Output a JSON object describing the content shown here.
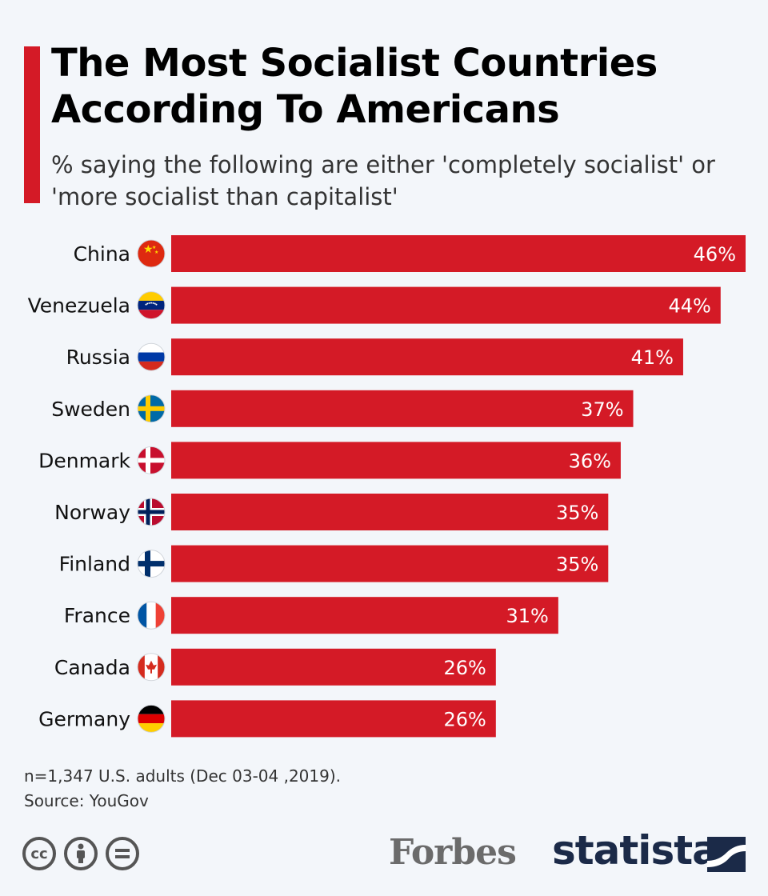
{
  "header": {
    "title": "The Most Socialist Countries According To Americans",
    "subtitle": "% saying the following are either 'completely socialist' or 'more socialist than capitalist'"
  },
  "chart_data": {
    "type": "bar",
    "orientation": "horizontal",
    "title": "The Most Socialist Countries According To Americans",
    "subtitle": "% saying the following are either 'completely socialist' or 'more socialist than capitalist'",
    "categories": [
      "China",
      "Venezuela",
      "Russia",
      "Sweden",
      "Denmark",
      "Norway",
      "Finland",
      "France",
      "Canada",
      "Germany"
    ],
    "values": [
      46,
      44,
      41,
      37,
      36,
      35,
      35,
      31,
      26,
      26
    ],
    "value_labels": [
      "46%",
      "44%",
      "41%",
      "37%",
      "36%",
      "35%",
      "35%",
      "31%",
      "26%",
      "26%"
    ],
    "unit": "%",
    "xlim": [
      0,
      46
    ],
    "grid": false,
    "bar_color": "#d41a26",
    "flag_icons": [
      "china-flag-icon",
      "venezuela-flag-icon",
      "russia-flag-icon",
      "sweden-flag-icon",
      "denmark-flag-icon",
      "norway-flag-icon",
      "finland-flag-icon",
      "france-flag-icon",
      "canada-flag-icon",
      "germany-flag-icon"
    ]
  },
  "notes": {
    "sample": "n=1,347 U.S. adults (Dec 03-04 ,2019).",
    "source": "Source: YouGov"
  },
  "footer": {
    "cc_icons": [
      "cc-icon",
      "by-icon",
      "nd-icon"
    ],
    "cc_text": "cc",
    "forbes": "Forbes",
    "statista": "statista"
  },
  "colors": {
    "accent": "#d41a26",
    "background": "#f3f6fa",
    "statista": "#1b2a48"
  }
}
